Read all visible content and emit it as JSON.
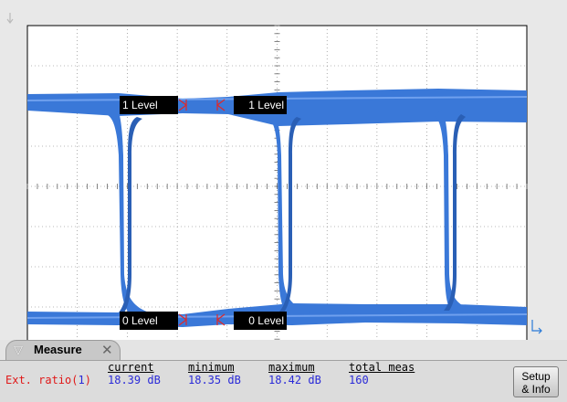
{
  "scope": {
    "trace_color": "#3a78d8",
    "markers": [
      {
        "label": "1 Level"
      },
      {
        "label": "1 Level"
      },
      {
        "label": "0 Level"
      },
      {
        "label": "0 Level"
      }
    ]
  },
  "measure": {
    "tab_title": "Measure",
    "headers": {
      "current": "current",
      "minimum": "minimum",
      "maximum": "maximum",
      "total": "total meas"
    },
    "row": {
      "name": "Ext. ratio(",
      "source": "1",
      "name_end": ")",
      "current": "18.39 dB",
      "minimum": "18.35 dB",
      "maximum": "18.42 dB",
      "total": "160"
    },
    "setup_label_1": "Setup",
    "setup_label_2": "& Info"
  }
}
